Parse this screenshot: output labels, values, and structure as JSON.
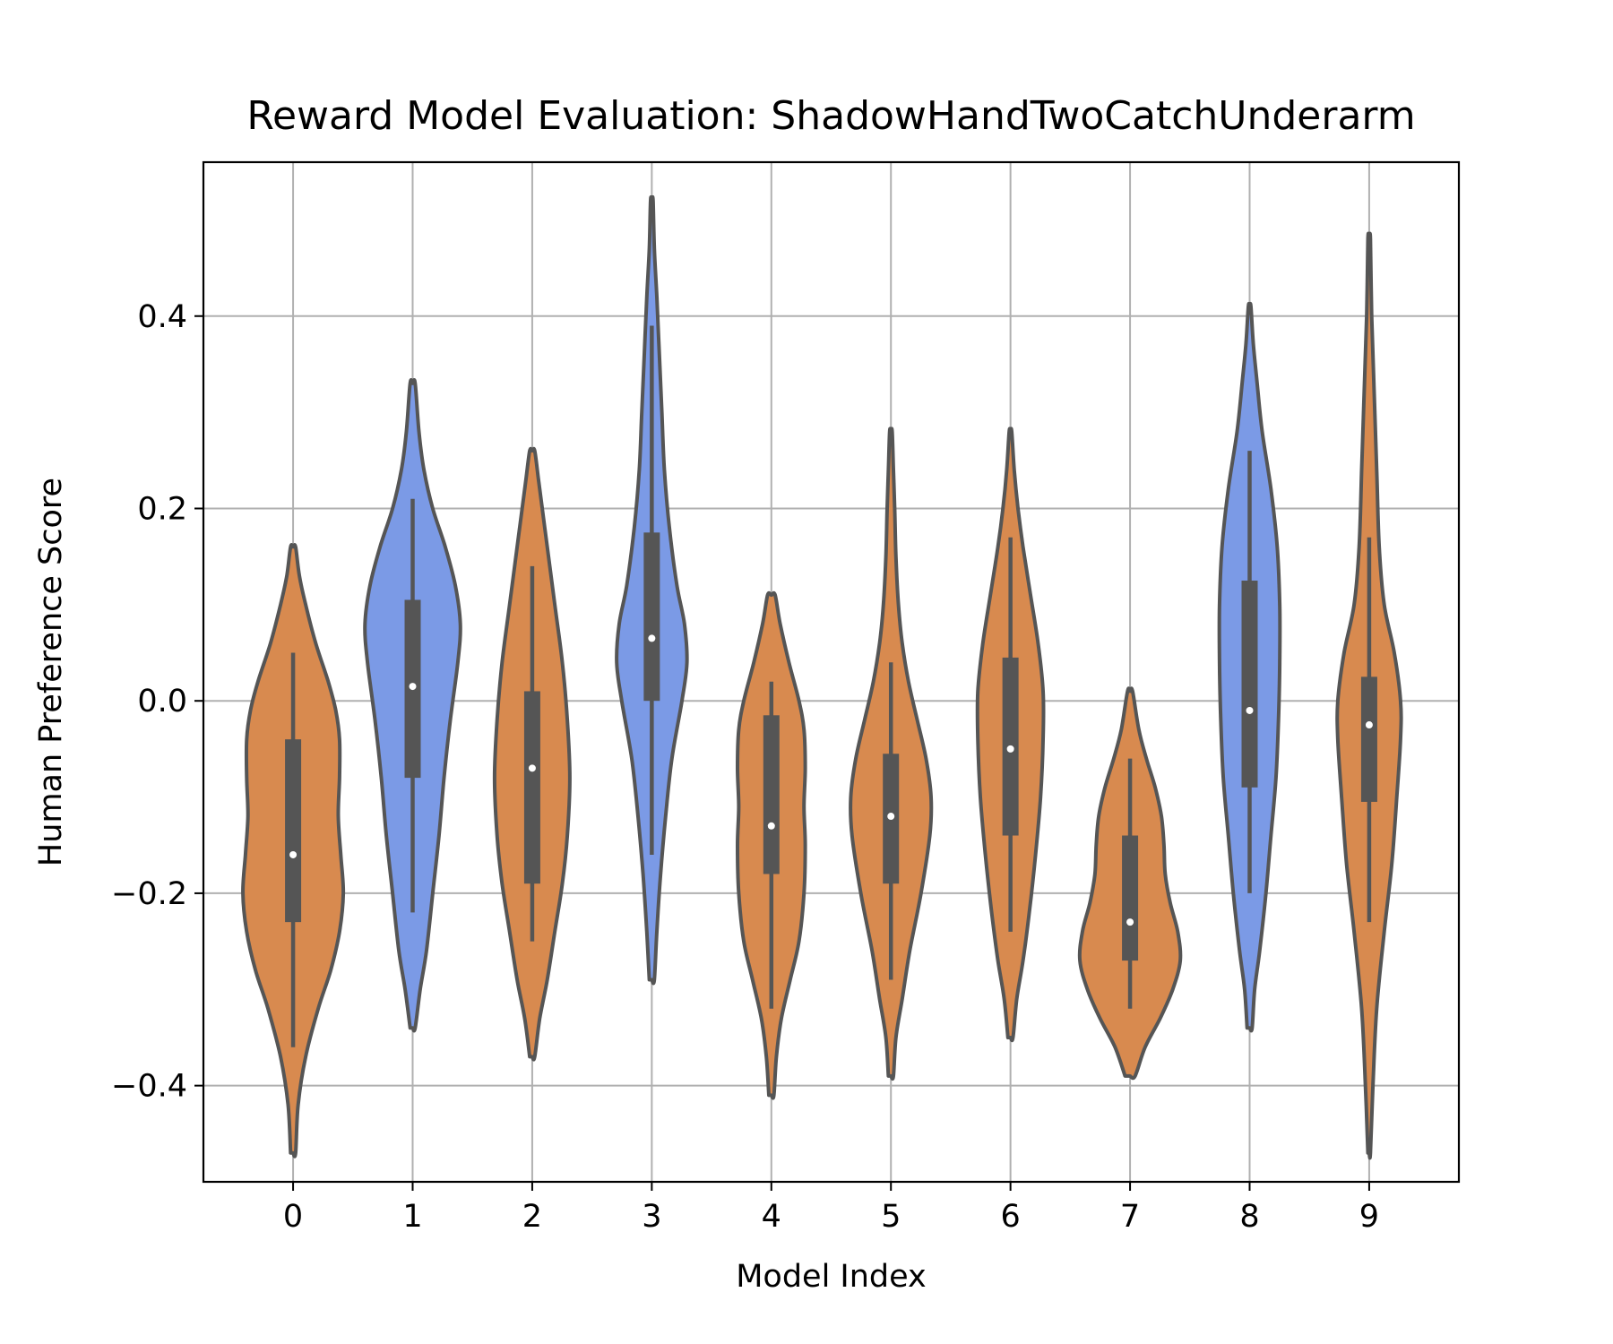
{
  "chart_data": {
    "type": "violin",
    "title": "Reward Model Evaluation: ShadowHandTwoCatchUnderarm",
    "xlabel": "Model Index",
    "ylabel": "Human Preference Score",
    "ylim": [
      -0.5,
      0.56
    ],
    "yticks": [
      -0.4,
      -0.2,
      0.0,
      0.2,
      0.4
    ],
    "ytick_labels": [
      "−0.4",
      "−0.2",
      "0.0",
      "0.2",
      "0.4"
    ],
    "grid": true,
    "colors": {
      "blue": "#7b9ae6",
      "orange": "#d88a4f",
      "outline": "#555555",
      "grid": "#b0b0b0"
    },
    "categories": [
      "0",
      "1",
      "2",
      "3",
      "4",
      "5",
      "6",
      "7",
      "8",
      "9"
    ],
    "violins": [
      {
        "category": "0",
        "color": "orange",
        "min": -0.47,
        "max": 0.16,
        "q1": -0.23,
        "median": -0.16,
        "q3": -0.04,
        "whisker_low": -0.36,
        "whisker_high": 0.05,
        "profile": [
          [
            -0.47,
            0.002
          ],
          [
            -0.42,
            0.004
          ],
          [
            -0.37,
            0.01
          ],
          [
            -0.32,
            0.02
          ],
          [
            -0.28,
            0.03
          ],
          [
            -0.24,
            0.037
          ],
          [
            -0.2,
            0.04
          ],
          [
            -0.16,
            0.038
          ],
          [
            -0.12,
            0.036
          ],
          [
            -0.08,
            0.037
          ],
          [
            -0.04,
            0.037
          ],
          [
            -0.01,
            0.034
          ],
          [
            0.02,
            0.028
          ],
          [
            0.06,
            0.018
          ],
          [
            0.1,
            0.01
          ],
          [
            0.13,
            0.005
          ],
          [
            0.16,
            0.002
          ]
        ]
      },
      {
        "category": "1",
        "color": "blue",
        "min": -0.34,
        "max": 0.33,
        "q1": -0.08,
        "median": 0.015,
        "q3": 0.105,
        "whisker_low": -0.22,
        "whisker_high": 0.21,
        "profile": [
          [
            -0.34,
            0.002
          ],
          [
            -0.3,
            0.006
          ],
          [
            -0.26,
            0.011
          ],
          [
            -0.2,
            0.016
          ],
          [
            -0.14,
            0.021
          ],
          [
            -0.08,
            0.025
          ],
          [
            -0.02,
            0.03
          ],
          [
            0.04,
            0.036
          ],
          [
            0.08,
            0.038
          ],
          [
            0.12,
            0.034
          ],
          [
            0.16,
            0.026
          ],
          [
            0.2,
            0.016
          ],
          [
            0.24,
            0.009
          ],
          [
            0.28,
            0.005
          ],
          [
            0.33,
            0.002
          ]
        ]
      },
      {
        "category": "2",
        "color": "orange",
        "min": -0.37,
        "max": 0.26,
        "q1": -0.19,
        "median": -0.07,
        "q3": 0.01,
        "whisker_low": -0.25,
        "whisker_high": 0.14,
        "profile": [
          [
            -0.37,
            0.002
          ],
          [
            -0.33,
            0.006
          ],
          [
            -0.29,
            0.012
          ],
          [
            -0.24,
            0.018
          ],
          [
            -0.19,
            0.024
          ],
          [
            -0.14,
            0.028
          ],
          [
            -0.08,
            0.03
          ],
          [
            -0.02,
            0.028
          ],
          [
            0.04,
            0.024
          ],
          [
            0.1,
            0.018
          ],
          [
            0.16,
            0.012
          ],
          [
            0.2,
            0.008
          ],
          [
            0.23,
            0.005
          ],
          [
            0.26,
            0.002
          ]
        ]
      },
      {
        "category": "3",
        "color": "blue",
        "min": -0.29,
        "max": 0.52,
        "q1": 0.0,
        "median": 0.065,
        "q3": 0.175,
        "whisker_low": -0.16,
        "whisker_high": 0.39,
        "profile": [
          [
            -0.29,
            0.002
          ],
          [
            -0.24,
            0.004
          ],
          [
            -0.18,
            0.007
          ],
          [
            -0.12,
            0.011
          ],
          [
            -0.06,
            0.016
          ],
          [
            0.0,
            0.024
          ],
          [
            0.04,
            0.028
          ],
          [
            0.08,
            0.026
          ],
          [
            0.12,
            0.02
          ],
          [
            0.18,
            0.014
          ],
          [
            0.24,
            0.01
          ],
          [
            0.3,
            0.008
          ],
          [
            0.36,
            0.006
          ],
          [
            0.42,
            0.004
          ],
          [
            0.47,
            0.002
          ],
          [
            0.52,
            0.001
          ]
        ]
      },
      {
        "category": "4",
        "color": "orange",
        "min": -0.41,
        "max": 0.11,
        "q1": -0.18,
        "median": -0.13,
        "q3": -0.015,
        "whisker_low": -0.32,
        "whisker_high": 0.02,
        "profile": [
          [
            -0.41,
            0.002
          ],
          [
            -0.37,
            0.004
          ],
          [
            -0.33,
            0.008
          ],
          [
            -0.29,
            0.015
          ],
          [
            -0.25,
            0.022
          ],
          [
            -0.2,
            0.026
          ],
          [
            -0.15,
            0.027
          ],
          [
            -0.11,
            0.026
          ],
          [
            -0.07,
            0.027
          ],
          [
            -0.03,
            0.026
          ],
          [
            0.0,
            0.022
          ],
          [
            0.04,
            0.014
          ],
          [
            0.08,
            0.007
          ],
          [
            0.11,
            0.003
          ]
        ]
      },
      {
        "category": "5",
        "color": "orange",
        "min": -0.39,
        "max": 0.28,
        "q1": -0.19,
        "median": -0.12,
        "q3": -0.055,
        "whisker_low": -0.29,
        "whisker_high": 0.04,
        "profile": [
          [
            -0.39,
            0.002
          ],
          [
            -0.35,
            0.004
          ],
          [
            -0.31,
            0.009
          ],
          [
            -0.26,
            0.015
          ],
          [
            -0.2,
            0.024
          ],
          [
            -0.14,
            0.031
          ],
          [
            -0.1,
            0.032
          ],
          [
            -0.06,
            0.028
          ],
          [
            -0.02,
            0.021
          ],
          [
            0.02,
            0.014
          ],
          [
            0.06,
            0.009
          ],
          [
            0.1,
            0.006
          ],
          [
            0.15,
            0.004
          ],
          [
            0.2,
            0.003
          ],
          [
            0.24,
            0.002
          ],
          [
            0.28,
            0.001
          ]
        ]
      },
      {
        "category": "6",
        "color": "orange",
        "min": -0.35,
        "max": 0.28,
        "q1": -0.14,
        "median": -0.05,
        "q3": 0.045,
        "whisker_low": -0.24,
        "whisker_high": 0.17,
        "profile": [
          [
            -0.35,
            0.002
          ],
          [
            -0.31,
            0.005
          ],
          [
            -0.27,
            0.01
          ],
          [
            -0.22,
            0.015
          ],
          [
            -0.16,
            0.02
          ],
          [
            -0.1,
            0.024
          ],
          [
            -0.04,
            0.026
          ],
          [
            0.01,
            0.026
          ],
          [
            0.06,
            0.022
          ],
          [
            0.11,
            0.016
          ],
          [
            0.16,
            0.01
          ],
          [
            0.2,
            0.006
          ],
          [
            0.24,
            0.003
          ],
          [
            0.28,
            0.001
          ]
        ]
      },
      {
        "category": "7",
        "color": "orange",
        "min": -0.39,
        "max": 0.01,
        "q1": -0.27,
        "median": -0.23,
        "q3": -0.14,
        "whisker_low": -0.32,
        "whisker_high": -0.06,
        "profile": [
          [
            -0.39,
            0.004
          ],
          [
            -0.36,
            0.012
          ],
          [
            -0.33,
            0.024
          ],
          [
            -0.3,
            0.034
          ],
          [
            -0.27,
            0.04
          ],
          [
            -0.24,
            0.038
          ],
          [
            -0.21,
            0.032
          ],
          [
            -0.18,
            0.028
          ],
          [
            -0.15,
            0.027
          ],
          [
            -0.12,
            0.025
          ],
          [
            -0.09,
            0.02
          ],
          [
            -0.06,
            0.013
          ],
          [
            -0.03,
            0.007
          ],
          [
            0.01,
            0.002
          ]
        ]
      },
      {
        "category": "8",
        "color": "blue",
        "min": -0.34,
        "max": 0.41,
        "q1": -0.09,
        "median": -0.01,
        "q3": 0.125,
        "whisker_low": -0.2,
        "whisker_high": 0.26,
        "profile": [
          [
            -0.34,
            0.002
          ],
          [
            -0.3,
            0.004
          ],
          [
            -0.26,
            0.008
          ],
          [
            -0.2,
            0.013
          ],
          [
            -0.14,
            0.017
          ],
          [
            -0.08,
            0.021
          ],
          [
            -0.02,
            0.023
          ],
          [
            0.04,
            0.024
          ],
          [
            0.1,
            0.024
          ],
          [
            0.16,
            0.022
          ],
          [
            0.22,
            0.017
          ],
          [
            0.28,
            0.01
          ],
          [
            0.33,
            0.006
          ],
          [
            0.37,
            0.003
          ],
          [
            0.41,
            0.001
          ]
        ]
      },
      {
        "category": "9",
        "color": "orange",
        "min": -0.47,
        "max": 0.48,
        "q1": -0.105,
        "median": -0.025,
        "q3": 0.025,
        "whisker_low": -0.23,
        "whisker_high": 0.17,
        "profile": [
          [
            -0.47,
            0.001
          ],
          [
            -0.4,
            0.003
          ],
          [
            -0.32,
            0.006
          ],
          [
            -0.24,
            0.012
          ],
          [
            -0.17,
            0.018
          ],
          [
            -0.1,
            0.022
          ],
          [
            -0.04,
            0.025
          ],
          [
            0.0,
            0.025
          ],
          [
            0.05,
            0.02
          ],
          [
            0.1,
            0.012
          ],
          [
            0.16,
            0.008
          ],
          [
            0.24,
            0.006
          ],
          [
            0.32,
            0.004
          ],
          [
            0.4,
            0.002
          ],
          [
            0.48,
            0.001
          ]
        ]
      }
    ]
  }
}
